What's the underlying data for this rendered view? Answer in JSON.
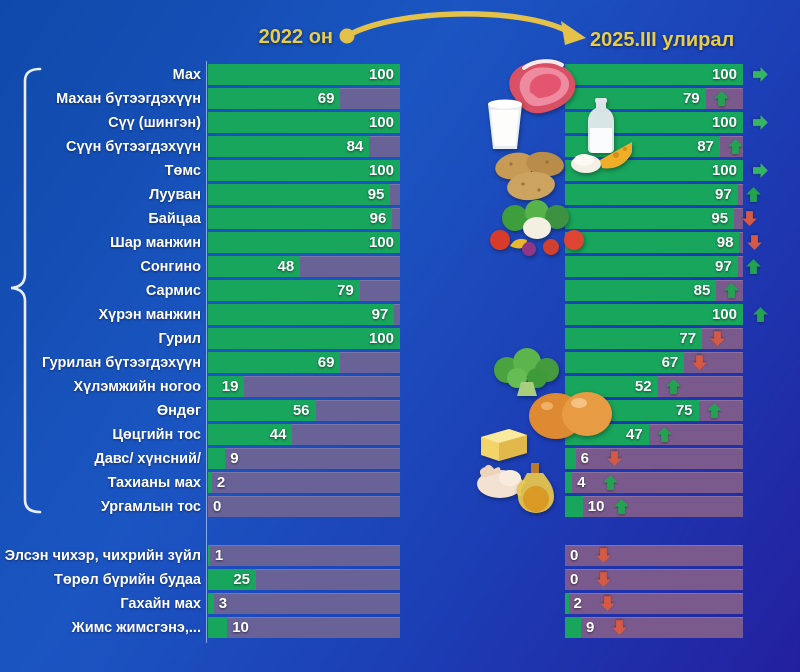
{
  "header": {
    "left_label": "2022 он",
    "right_label": "2025.III улирал"
  },
  "colors": {
    "background_top": "#0f49a9",
    "background_bottom": "#23209f",
    "bar_fill": "#18a55c",
    "track_left": "#686297",
    "track_right": "#7a5a8c",
    "header_text": "#e8cd4c",
    "transition_arrow": "#e4c24a",
    "trend_up": "#23a352",
    "trend_down": "#d45a45",
    "trend_same": "#35b562",
    "label_text": "#ffffff",
    "bracket": "#e7eefb",
    "axis_line": "#cfe0f5"
  },
  "icons": [
    {
      "name": "meat-image"
    },
    {
      "name": "milk-glass-image"
    },
    {
      "name": "milk-bottle-image"
    },
    {
      "name": "dairy-cheese-image"
    },
    {
      "name": "potatoes-image"
    },
    {
      "name": "vegetables-image"
    },
    {
      "name": "broccoli-image"
    },
    {
      "name": "eggs-image"
    },
    {
      "name": "butter-cheese-image"
    },
    {
      "name": "chicken-image"
    },
    {
      "name": "oil-bottle-image"
    },
    {
      "name": "trend-up-icon",
      "glyph": "⬆"
    },
    {
      "name": "trend-down-icon",
      "glyph": "⬇"
    },
    {
      "name": "trend-same-icon",
      "glyph": "➡"
    }
  ],
  "bracket_group": {
    "start_index": 0,
    "end_index": 18
  },
  "rows": [
    {
      "label": "Мах",
      "v2022": 100,
      "v2025": 100,
      "trend": "same"
    },
    {
      "label": "Махан бүтээгдэхүүн",
      "v2022": 69,
      "v2025": 79,
      "trend": "up"
    },
    {
      "label": "Сүү (шингэн)",
      "v2022": 100,
      "v2025": 100,
      "trend": "same"
    },
    {
      "label": "Сүүн бүтээгдэхүүн",
      "v2022": 84,
      "v2025": 87,
      "trend": "up"
    },
    {
      "label": "Төмс",
      "v2022": 100,
      "v2025": 100,
      "trend": "same"
    },
    {
      "label": "Лууван",
      "v2022": 95,
      "v2025": 97,
      "trend": "up"
    },
    {
      "label": "Байцаа",
      "v2022": 96,
      "v2025": 95,
      "trend": "down"
    },
    {
      "label": "Шар манжин",
      "v2022": 100,
      "v2025": 98,
      "trend": "down"
    },
    {
      "label": "Сонгино",
      "v2022": 48,
      "v2025": 97,
      "trend": "up"
    },
    {
      "label": "Сармис",
      "v2022": 79,
      "v2025": 85,
      "trend": "up"
    },
    {
      "label": "Хүрэн манжин",
      "v2022": 97,
      "v2025": 100,
      "trend": "up"
    },
    {
      "label": "Гурил",
      "v2022": 100,
      "v2025": 77,
      "trend": "down"
    },
    {
      "label": "Гурилан бүтээгдэхүүн",
      "v2022": 69,
      "v2025": 67,
      "trend": "down"
    },
    {
      "label": "Хүлэмжийн ногоо",
      "v2022": 19,
      "v2025": 52,
      "trend": "up"
    },
    {
      "label": "Өндөг",
      "v2022": 56,
      "v2025": 75,
      "trend": "up"
    },
    {
      "label": "Цөцгийн тос",
      "v2022": 44,
      "v2025": 47,
      "trend": "up"
    },
    {
      "label": "Давс/ хүнсний/",
      "v2022": 9,
      "v2025": 6,
      "trend": "down"
    },
    {
      "label": "Тахианы мах",
      "v2022": 2,
      "v2025": 4,
      "trend": "up"
    },
    {
      "label": "Ургамлын тос",
      "v2022": 0,
      "v2025": 10,
      "trend": "up"
    },
    {
      "label": "Элсэн чихэр, чихрийн зүйл",
      "v2022": 1,
      "v2025": 0,
      "trend": "down"
    },
    {
      "label": "Төрөл бүрийн будаа",
      "v2022": 25,
      "v2025": 0,
      "trend": "down"
    },
    {
      "label": "Гахайн мах",
      "v2022": 3,
      "v2025": 2,
      "trend": "down"
    },
    {
      "label": "Жимс жимсгэнэ,...",
      "v2022": 10,
      "v2025": 9,
      "trend": "down"
    }
  ],
  "chart_data": {
    "type": "bar",
    "orientation": "horizontal",
    "title": "",
    "xlabel": "",
    "ylabel": "",
    "xlim": [
      0,
      100
    ],
    "grid": false,
    "legend_position": "top",
    "categories": [
      "Мах",
      "Махан бүтээгдэхүүн",
      "Сүү (шингэн)",
      "Сүүн бүтээгдэхүүн",
      "Төмс",
      "Лууван",
      "Байцаа",
      "Шар манжин",
      "Сонгино",
      "Сармис",
      "Хүрэн манжин",
      "Гурил",
      "Гурилан бүтээгдэхүүн",
      "Хүлэмжийн ногоо",
      "Өндөг",
      "Цөцгийн тос",
      "Давс/ хүнсний/",
      "Тахианы мах",
      "Ургамлын тос",
      "Элсэн чихэр, чихрийн зүйл",
      "Төрөл бүрийн будаа",
      "Гахайн мах",
      "Жимс жимсгэнэ,..."
    ],
    "series": [
      {
        "name": "2022 он",
        "values": [
          100,
          69,
          100,
          84,
          100,
          95,
          96,
          100,
          48,
          79,
          97,
          100,
          69,
          19,
          56,
          44,
          9,
          2,
          0,
          1,
          25,
          3,
          10
        ]
      },
      {
        "name": "2025.III улирал",
        "values": [
          100,
          79,
          100,
          87,
          100,
          97,
          95,
          98,
          97,
          85,
          100,
          77,
          67,
          52,
          75,
          47,
          6,
          4,
          10,
          0,
          0,
          2,
          9
        ]
      }
    ],
    "trend_vs_2022": [
      "same",
      "up",
      "same",
      "up",
      "same",
      "up",
      "down",
      "down",
      "up",
      "up",
      "up",
      "down",
      "down",
      "up",
      "up",
      "up",
      "down",
      "up",
      "up",
      "down",
      "down",
      "down",
      "down"
    ]
  }
}
